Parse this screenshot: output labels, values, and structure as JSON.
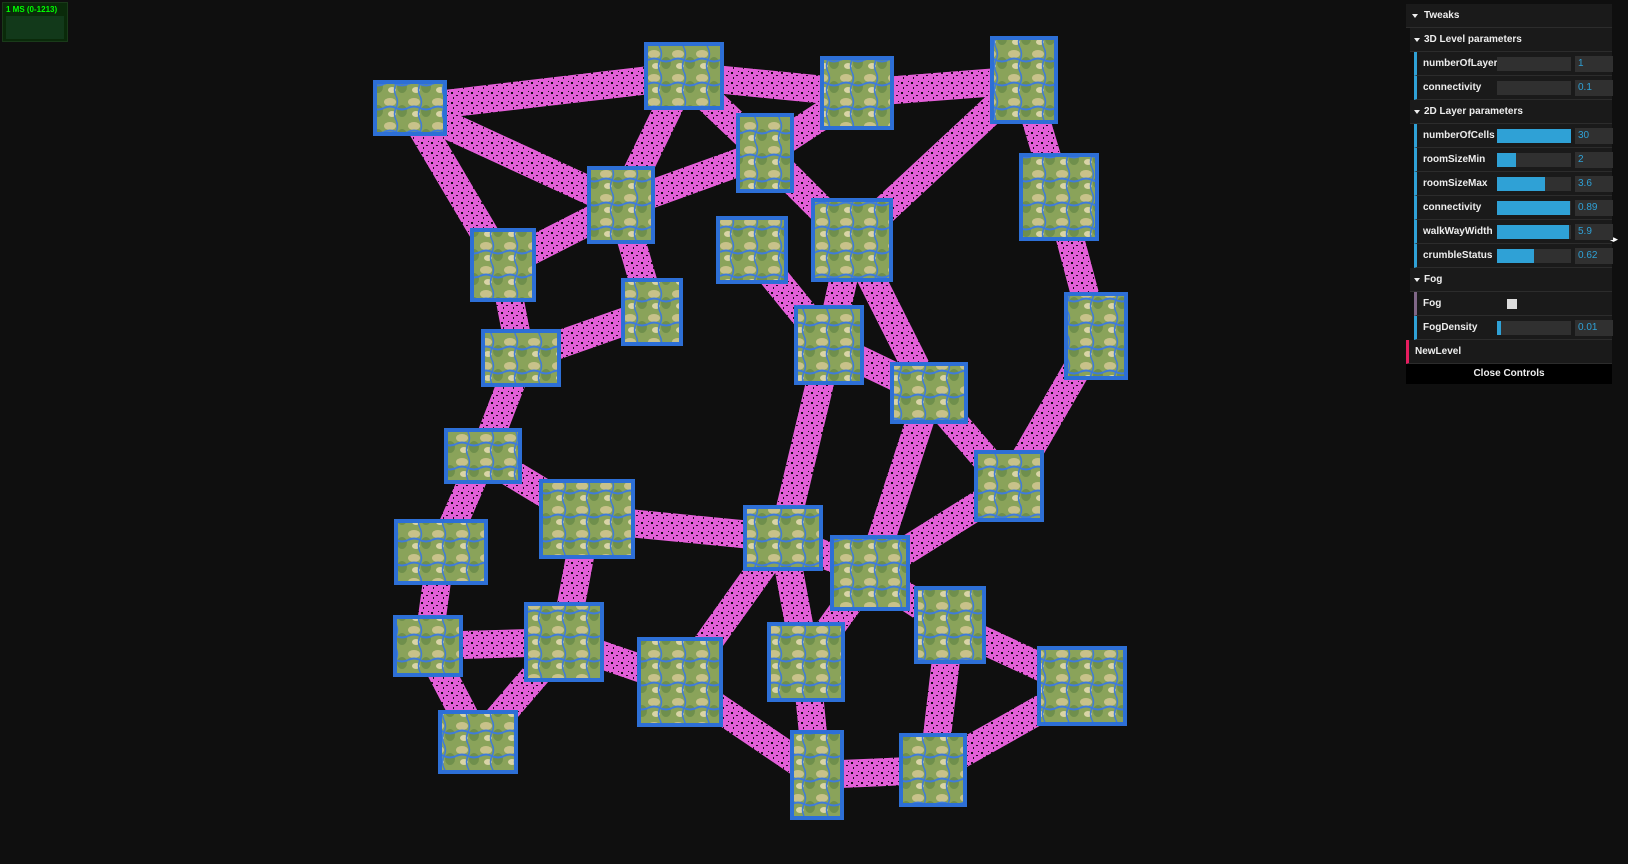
{
  "stats": {
    "label": "1 MS (0-1213)"
  },
  "gui": {
    "root_title": "Tweaks",
    "folders": [
      {
        "title": "3D Level parameters",
        "controls": [
          {
            "label": "numberOfLayers",
            "value": "1",
            "fraction": 0.0
          },
          {
            "label": "connectivity",
            "value": "0.1",
            "fraction": 0.0
          }
        ]
      },
      {
        "title": "2D Layer parameters",
        "controls": [
          {
            "label": "numberOfCells",
            "value": "30",
            "fraction": 1.0
          },
          {
            "label": "roomSizeMin",
            "value": "2",
            "fraction": 0.25
          },
          {
            "label": "roomSizeMax",
            "value": "3.6",
            "fraction": 0.65
          },
          {
            "label": "connectivity",
            "value": "0.89",
            "fraction": 0.99
          },
          {
            "label": "walkWayWidth",
            "value": "5.9",
            "fraction": 0.97
          },
          {
            "label": "crumbleStatus",
            "value": "0.62",
            "fraction": 0.5
          }
        ]
      },
      {
        "title": "Fog",
        "toggle": {
          "label": "Fog",
          "checked": false
        },
        "controls": [
          {
            "label": "FogDensity",
            "value": "0.01",
            "fraction": 0.05
          }
        ]
      }
    ],
    "new_level": "NewLevel",
    "close": "Close Controls"
  },
  "colors": {
    "background": "#0f0f0f",
    "walkway": "#e35fd8",
    "room_edge": "#2d6fd6",
    "room_fill": "#8fa85e",
    "slider": "#2fa1d6"
  }
}
